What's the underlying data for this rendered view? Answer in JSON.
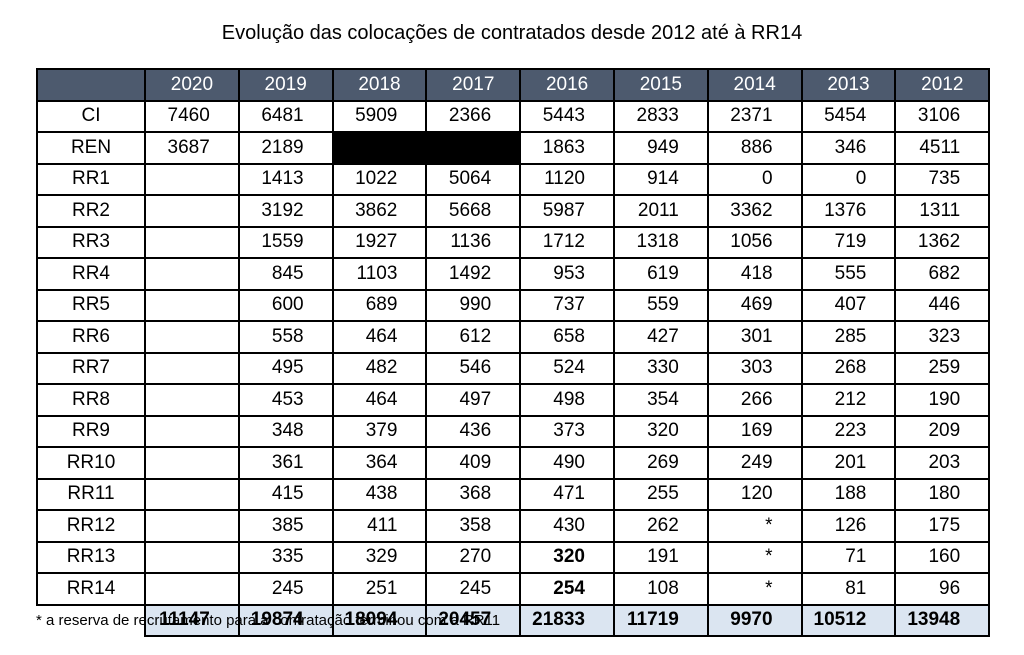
{
  "chart_data": {
    "type": "table",
    "title": "Evolução das colocações de contratados desde 2012 até à RR14",
    "columns": [
      "2020",
      "2019",
      "2018",
      "2017",
      "2016",
      "2015",
      "2014",
      "2013",
      "2012"
    ],
    "rows": [
      {
        "label": "CI",
        "values": [
          "7460",
          "6481",
          "5909",
          "2366",
          "5443",
          "2833",
          "2371",
          "5454",
          "3106"
        ]
      },
      {
        "label": "REN",
        "values": [
          "3687",
          "2189",
          "",
          "",
          "1863",
          "949",
          "886",
          "346",
          "4511"
        ]
      },
      {
        "label": "RR1",
        "values": [
          "",
          "1413",
          "1022",
          "5064",
          "1120",
          "914",
          "0",
          "0",
          "735"
        ]
      },
      {
        "label": "RR2",
        "values": [
          "",
          "3192",
          "3862",
          "5668",
          "5987",
          "2011",
          "3362",
          "1376",
          "1311"
        ]
      },
      {
        "label": "RR3",
        "values": [
          "",
          "1559",
          "1927",
          "1136",
          "1712",
          "1318",
          "1056",
          "719",
          "1362"
        ]
      },
      {
        "label": "RR4",
        "values": [
          "",
          "845",
          "1103",
          "1492",
          "953",
          "619",
          "418",
          "555",
          "682"
        ]
      },
      {
        "label": "RR5",
        "values": [
          "",
          "600",
          "689",
          "990",
          "737",
          "559",
          "469",
          "407",
          "446"
        ]
      },
      {
        "label": "RR6",
        "values": [
          "",
          "558",
          "464",
          "612",
          "658",
          "427",
          "301",
          "285",
          "323"
        ]
      },
      {
        "label": "RR7",
        "values": [
          "",
          "495",
          "482",
          "546",
          "524",
          "330",
          "303",
          "268",
          "259"
        ]
      },
      {
        "label": "RR8",
        "values": [
          "",
          "453",
          "464",
          "497",
          "498",
          "354",
          "266",
          "212",
          "190"
        ]
      },
      {
        "label": "RR9",
        "values": [
          "",
          "348",
          "379",
          "436",
          "373",
          "320",
          "169",
          "223",
          "209"
        ]
      },
      {
        "label": "RR10",
        "values": [
          "",
          "361",
          "364",
          "409",
          "490",
          "269",
          "249",
          "201",
          "203"
        ]
      },
      {
        "label": "RR11",
        "values": [
          "",
          "415",
          "438",
          "368",
          "471",
          "255",
          "120",
          "188",
          "180"
        ]
      },
      {
        "label": "RR12",
        "values": [
          "",
          "385",
          "411",
          "358",
          "430",
          "262",
          "*",
          "126",
          "175"
        ]
      },
      {
        "label": "RR13",
        "values": [
          "",
          "335",
          "329",
          "270",
          "320",
          "191",
          "*",
          "71",
          "160"
        ]
      },
      {
        "label": "RR14",
        "values": [
          "",
          "245",
          "251",
          "245",
          "254",
          "108",
          "*",
          "81",
          "96"
        ]
      }
    ],
    "totals": [
      "11147",
      "19874",
      "18094",
      "20457",
      "21833",
      "11719",
      "9970",
      "10512",
      "13948"
    ],
    "redacted_cells": [
      {
        "row": 1,
        "col": 2
      },
      {
        "row": 1,
        "col": 3
      }
    ],
    "bold_cells": [
      {
        "row": 14,
        "col": 4
      },
      {
        "row": 15,
        "col": 4
      }
    ],
    "footnote": "* a reserva de recrutamento para a contratação terminou com a RR11",
    "colors": {
      "header_bg": "#4d5a6e",
      "header_text": "#ffffff",
      "total_bg": "#dbe5f1",
      "redacted": "#000000"
    }
  }
}
